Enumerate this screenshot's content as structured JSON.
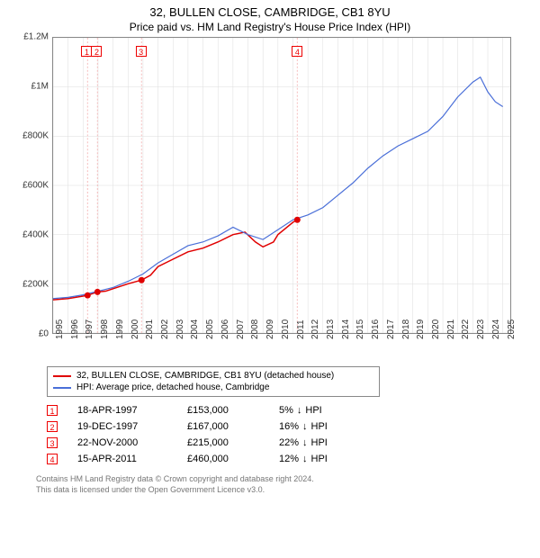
{
  "title": "32, BULLEN CLOSE, CAMBRIDGE, CB1 8YU",
  "subtitle": "Price paid vs. HM Land Registry's House Price Index (HPI)",
  "chart": {
    "type": "line",
    "xlim": [
      1995,
      2025.5
    ],
    "ylim": [
      0,
      1200000
    ],
    "yticks": [
      0,
      200000,
      400000,
      600000,
      800000,
      1000000,
      1200000
    ],
    "ytick_labels": [
      "£0",
      "£200K",
      "£400K",
      "£600K",
      "£800K",
      "£1M",
      "£1.2M"
    ],
    "xticks": [
      1995,
      1996,
      1997,
      1998,
      1999,
      2000,
      2001,
      2002,
      2003,
      2004,
      2005,
      2006,
      2007,
      2008,
      2009,
      2010,
      2011,
      2012,
      2013,
      2014,
      2015,
      2016,
      2017,
      2018,
      2019,
      2020,
      2021,
      2022,
      2023,
      2024,
      2025
    ],
    "background": "#ffffff",
    "grid_color": "#dddddd",
    "axis_color": "#888888",
    "series": [
      {
        "name": "price_paid",
        "color": "#e00000",
        "width": 1.5,
        "data": [
          [
            1995,
            135000
          ],
          [
            1996,
            140000
          ],
          [
            1997,
            150000
          ],
          [
            1997.3,
            153000
          ],
          [
            1997.96,
            167000
          ],
          [
            1998.5,
            170000
          ],
          [
            1999,
            180000
          ],
          [
            2000,
            200000
          ],
          [
            2000.9,
            215000
          ],
          [
            2001.5,
            235000
          ],
          [
            2002,
            270000
          ],
          [
            2003,
            300000
          ],
          [
            2004,
            330000
          ],
          [
            2005,
            345000
          ],
          [
            2006,
            370000
          ],
          [
            2007,
            400000
          ],
          [
            2007.8,
            410000
          ],
          [
            2008.5,
            370000
          ],
          [
            2009,
            350000
          ],
          [
            2009.7,
            370000
          ],
          [
            2010,
            400000
          ],
          [
            2011,
            450000
          ],
          [
            2011.29,
            460000
          ]
        ]
      },
      {
        "name": "hpi",
        "color": "#4a6fd8",
        "width": 1.2,
        "data": [
          [
            1995,
            140000
          ],
          [
            1996,
            145000
          ],
          [
            1997,
            155000
          ],
          [
            1998,
            170000
          ],
          [
            1999,
            185000
          ],
          [
            2000,
            210000
          ],
          [
            2001,
            240000
          ],
          [
            2002,
            285000
          ],
          [
            2003,
            320000
          ],
          [
            2004,
            355000
          ],
          [
            2005,
            370000
          ],
          [
            2006,
            395000
          ],
          [
            2007,
            430000
          ],
          [
            2008,
            400000
          ],
          [
            2009,
            380000
          ],
          [
            2010,
            420000
          ],
          [
            2011,
            460000
          ],
          [
            2012,
            480000
          ],
          [
            2013,
            510000
          ],
          [
            2014,
            560000
          ],
          [
            2015,
            610000
          ],
          [
            2016,
            670000
          ],
          [
            2017,
            720000
          ],
          [
            2018,
            760000
          ],
          [
            2019,
            790000
          ],
          [
            2020,
            820000
          ],
          [
            2021,
            880000
          ],
          [
            2022,
            960000
          ],
          [
            2023,
            1020000
          ],
          [
            2023.5,
            1040000
          ],
          [
            2024,
            980000
          ],
          [
            2024.5,
            940000
          ],
          [
            2025,
            920000
          ]
        ]
      }
    ],
    "sale_markers": [
      {
        "n": "1",
        "x": 1997.3,
        "y": 153000
      },
      {
        "n": "2",
        "x": 1997.96,
        "y": 167000
      },
      {
        "n": "3",
        "x": 2000.9,
        "y": 215000
      },
      {
        "n": "4",
        "x": 2011.29,
        "y": 460000
      }
    ],
    "marker_color": "#e00000",
    "marker_line_color": "#f5bcbc",
    "marker_box_border": "#e00000"
  },
  "legend": {
    "s1_color": "#e00000",
    "s1_label": "32, BULLEN CLOSE, CAMBRIDGE, CB1 8YU (detached house)",
    "s2_color": "#4a6fd8",
    "s2_label": "HPI: Average price, detached house, Cambridge"
  },
  "transactions": [
    {
      "n": "1",
      "date": "18-APR-1997",
      "price": "£153,000",
      "diff": "5%",
      "dir": "↓",
      "suffix": "HPI"
    },
    {
      "n": "2",
      "date": "19-DEC-1997",
      "price": "£167,000",
      "diff": "16%",
      "dir": "↓",
      "suffix": "HPI"
    },
    {
      "n": "3",
      "date": "22-NOV-2000",
      "price": "£215,000",
      "diff": "22%",
      "dir": "↓",
      "suffix": "HPI"
    },
    {
      "n": "4",
      "date": "15-APR-2011",
      "price": "£460,000",
      "diff": "12%",
      "dir": "↓",
      "suffix": "HPI"
    }
  ],
  "footer_l1": "Contains HM Land Registry data © Crown copyright and database right 2024.",
  "footer_l2": "This data is licensed under the Open Government Licence v3.0."
}
